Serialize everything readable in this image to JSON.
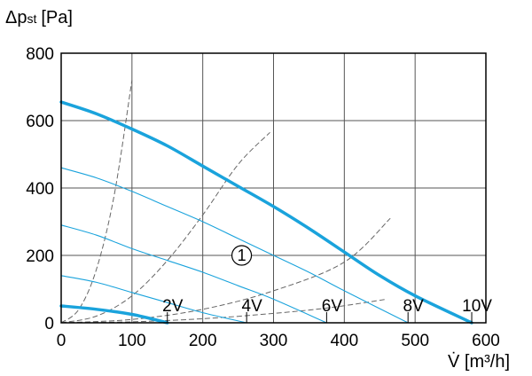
{
  "chart_data": {
    "type": "line",
    "ylabel_main": "Δp",
    "ylabel_sub": "st",
    "ylabel_unit": "[Pa]",
    "xlabel": "V̇ [m³/h]",
    "xlim": [
      0,
      600
    ],
    "ylim": [
      0,
      800
    ],
    "x_ticks": [
      "0",
      "100",
      "200",
      "300",
      "400",
      "500",
      "600"
    ],
    "y_ticks": [
      "0",
      "200",
      "400",
      "600",
      "800"
    ],
    "grid": true,
    "circle_annotation": {
      "text": "1",
      "x": 255,
      "y": 200
    },
    "series": [
      {
        "label": "2V",
        "label_at": [
          150,
          0
        ],
        "line_color": "#1aa3dc",
        "line_width": 3.5,
        "points": [
          [
            0,
            50
          ],
          [
            50,
            40
          ],
          [
            100,
            25
          ],
          [
            150,
            0
          ]
        ]
      },
      {
        "label": "4V",
        "label_at": [
          262,
          0
        ],
        "line_color": "#1aa3dc",
        "line_width": 1.1,
        "points": [
          [
            0,
            140
          ],
          [
            50,
            120
          ],
          [
            100,
            90
          ],
          [
            150,
            60
          ],
          [
            200,
            30
          ],
          [
            262,
            0
          ]
        ]
      },
      {
        "label": "6V",
        "label_at": [
          375,
          0
        ],
        "line_color": "#1aa3dc",
        "line_width": 1.1,
        "points": [
          [
            0,
            290
          ],
          [
            50,
            260
          ],
          [
            100,
            220
          ],
          [
            150,
            185
          ],
          [
            200,
            150
          ],
          [
            250,
            110
          ],
          [
            300,
            70
          ],
          [
            375,
            0
          ]
        ]
      },
      {
        "label": "8V",
        "label_at": [
          490,
          0
        ],
        "line_color": "#1aa3dc",
        "line_width": 1.1,
        "points": [
          [
            0,
            460
          ],
          [
            50,
            430
          ],
          [
            100,
            390
          ],
          [
            150,
            345
          ],
          [
            200,
            300
          ],
          [
            250,
            250
          ],
          [
            300,
            200
          ],
          [
            350,
            150
          ],
          [
            400,
            95
          ],
          [
            490,
            0
          ]
        ]
      },
      {
        "label": "10V",
        "label_at": [
          580,
          0
        ],
        "line_color": "#1aa3dc",
        "line_width": 3.5,
        "points": [
          [
            0,
            655
          ],
          [
            50,
            620
          ],
          [
            100,
            575
          ],
          [
            150,
            525
          ],
          [
            200,
            465
          ],
          [
            250,
            405
          ],
          [
            300,
            345
          ],
          [
            350,
            280
          ],
          [
            400,
            210
          ],
          [
            450,
            140
          ],
          [
            500,
            80
          ],
          [
            580,
            0
          ]
        ]
      }
    ],
    "system_curves": [
      {
        "line_color": "#666666",
        "points": [
          [
            0,
            0
          ],
          [
            25,
            40
          ],
          [
            50,
            160
          ],
          [
            75,
            380
          ],
          [
            100,
            720
          ]
        ]
      },
      {
        "line_color": "#666666",
        "points": [
          [
            0,
            0
          ],
          [
            50,
            20
          ],
          [
            100,
            80
          ],
          [
            150,
            185
          ],
          [
            200,
            320
          ],
          [
            250,
            470
          ],
          [
            295,
            565
          ]
        ]
      },
      {
        "line_color": "#666666",
        "points": [
          [
            0,
            0
          ],
          [
            100,
            10
          ],
          [
            200,
            40
          ],
          [
            300,
            95
          ],
          [
            400,
            180
          ],
          [
            465,
            310
          ]
        ]
      },
      {
        "line_color": "#666666",
        "points": [
          [
            0,
            0
          ],
          [
            100,
            3
          ],
          [
            200,
            12
          ],
          [
            300,
            28
          ],
          [
            380,
            45
          ],
          [
            460,
            70
          ]
        ]
      }
    ]
  }
}
